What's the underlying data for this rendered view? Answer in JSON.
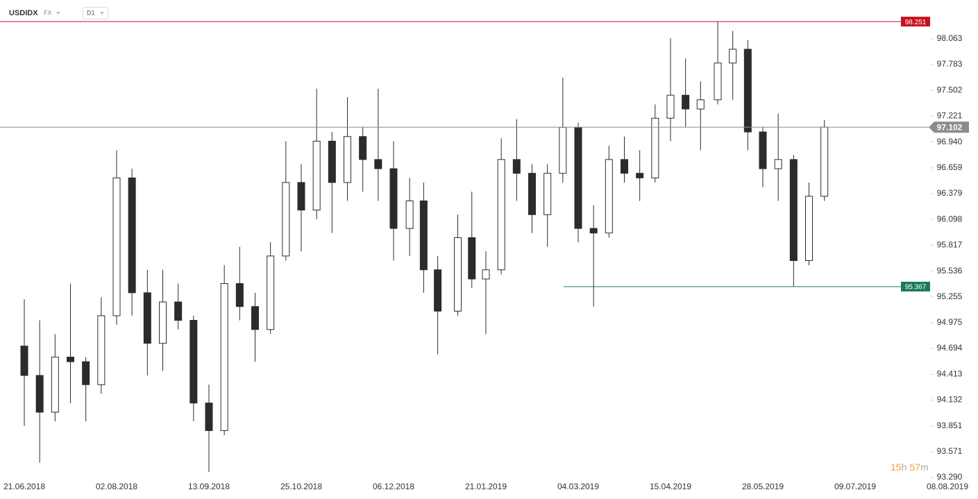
{
  "header": {
    "symbol": "USDIDX",
    "market": "FX",
    "interval": "D1"
  },
  "countdown": {
    "hours": "15",
    "hours_unit": "h",
    "minutes": "57",
    "minutes_unit": "m"
  },
  "chart_data": {
    "type": "candlestick",
    "x": [
      "21.06.2018",
      "28.06.2018",
      "05.07.2018",
      "12.07.2018",
      "19.07.2018",
      "26.07.2018",
      "02.08.2018",
      "09.08.2018",
      "16.08.2018",
      "23.08.2018",
      "30.08.2018",
      "06.09.2018",
      "13.09.2018",
      "20.09.2018",
      "27.09.2018",
      "04.10.2018",
      "11.10.2018",
      "18.10.2018",
      "25.10.2018",
      "01.11.2018",
      "08.11.2018",
      "15.11.2018",
      "22.11.2018",
      "29.11.2018",
      "06.12.2018",
      "14.12.2018",
      "21.12.2018",
      "28.12.2018",
      "07.01.2019",
      "14.01.2019",
      "21.01.2019",
      "28.01.2019",
      "04.02.2019",
      "11.02.2019",
      "18.02.2019",
      "25.02.2019",
      "04.03.2019",
      "11.03.2019",
      "18.03.2019",
      "25.03.2019",
      "01.04.2019",
      "08.04.2019",
      "15.04.2019",
      "22.04.2019",
      "29.04.2019",
      "07.05.2019",
      "14.05.2019",
      "21.05.2019",
      "28.05.2019",
      "04.06.2019",
      "11.06.2019",
      "18.06.2019",
      "25.06.2019"
    ],
    "open": [
      94.72,
      94.4,
      94.0,
      94.6,
      94.55,
      94.3,
      95.05,
      96.55,
      95.3,
      94.75,
      95.2,
      95.0,
      94.1,
      93.8,
      95.4,
      95.15,
      94.9,
      95.7,
      96.5,
      96.2,
      96.95,
      96.5,
      97.0,
      96.75,
      96.65,
      96.0,
      96.3,
      95.55,
      95.1,
      95.9,
      95.45,
      95.55,
      96.75,
      96.6,
      96.15,
      96.6,
      97.1,
      96.0,
      95.95,
      96.75,
      96.6,
      96.55,
      97.2,
      97.45,
      97.3,
      97.4,
      97.8,
      97.95,
      97.05,
      96.65,
      96.75,
      95.65,
      96.35
    ],
    "high": [
      95.23,
      95.0,
      94.85,
      95.4,
      94.6,
      95.25,
      96.85,
      96.65,
      95.55,
      95.55,
      95.4,
      95.05,
      94.3,
      95.6,
      95.8,
      95.3,
      95.85,
      96.95,
      96.7,
      97.52,
      97.05,
      97.43,
      97.1,
      97.52,
      96.95,
      96.55,
      96.5,
      95.7,
      96.15,
      96.4,
      95.75,
      96.98,
      97.19,
      96.7,
      96.7,
      97.64,
      97.15,
      96.25,
      96.9,
      97.0,
      96.85,
      97.35,
      98.07,
      97.85,
      97.6,
      98.251,
      98.15,
      98.05,
      97.1,
      97.25,
      96.8,
      96.5,
      97.18
    ],
    "low": [
      93.85,
      93.45,
      93.9,
      94.1,
      93.9,
      94.2,
      94.95,
      95.05,
      94.4,
      94.45,
      94.9,
      93.9,
      93.35,
      93.75,
      95.0,
      94.55,
      94.85,
      95.65,
      95.75,
      96.1,
      95.95,
      96.3,
      96.4,
      96.3,
      95.65,
      95.7,
      95.3,
      94.63,
      95.05,
      95.35,
      94.85,
      95.5,
      96.3,
      95.95,
      95.8,
      96.5,
      95.85,
      95.15,
      95.9,
      96.5,
      96.3,
      96.5,
      96.95,
      97.1,
      96.85,
      97.35,
      97.4,
      96.85,
      96.45,
      96.3,
      95.367,
      95.6,
      96.3
    ],
    "close": [
      94.4,
      94.0,
      94.6,
      94.55,
      94.3,
      95.05,
      96.55,
      95.3,
      94.75,
      95.2,
      95.0,
      94.1,
      93.8,
      95.4,
      95.15,
      94.9,
      95.7,
      96.5,
      96.2,
      96.95,
      96.5,
      97.0,
      96.75,
      96.65,
      96.0,
      96.3,
      95.55,
      95.1,
      95.9,
      95.45,
      95.55,
      96.75,
      96.6,
      96.15,
      96.6,
      97.1,
      96.0,
      95.95,
      96.75,
      96.6,
      96.55,
      97.2,
      97.45,
      97.3,
      97.4,
      97.8,
      97.95,
      97.05,
      96.65,
      96.75,
      95.65,
      96.35,
      97.102
    ],
    "up_color": "#ffffff",
    "down_color": "#2b2b2b",
    "edge_color": "#2b2b2b",
    "ylim": [
      93.199,
      98.486
    ],
    "yticks": [
      98.063,
      97.783,
      97.502,
      97.221,
      {
        "value": 96.94,
        "label": "96.940"
      },
      96.659,
      96.379,
      96.098,
      95.817,
      95.536,
      95.255,
      94.975,
      94.694,
      94.413,
      94.132,
      93.851,
      93.571,
      {
        "value": 93.29,
        "label": "93.290"
      }
    ],
    "xticks": [
      "21.06.2018",
      "02.08.2018",
      "13.09.2018",
      "25.10.2018",
      "06.12.2018",
      "21.01.2019",
      "04.03.2019",
      "15.04.2019",
      "28.05.2019",
      "09.07.2019",
      "08.08.2019"
    ],
    "levels": [
      {
        "value": 98.251,
        "color": "#c8101e",
        "full": true
      },
      {
        "value": 97.102,
        "color": "#8c8c8c",
        "full": true,
        "last": true
      },
      {
        "value": 95.367,
        "color": "#1b7a5b",
        "full": false
      }
    ]
  }
}
